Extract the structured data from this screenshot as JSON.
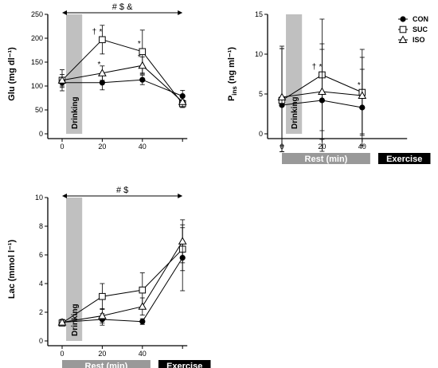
{
  "chart_data": [
    {
      "id": "glu",
      "type": "line",
      "ylabel": "Glu (mg dl⁻¹)",
      "ylim": [
        0,
        250
      ],
      "yticks": [
        0,
        50,
        100,
        150,
        200,
        250
      ],
      "xticks": [
        0,
        20,
        40
      ],
      "x": [
        0,
        20,
        40,
        60
      ],
      "drinking_label": "Drinking",
      "drinking_range": [
        2,
        10
      ],
      "annotation": {
        "text": "#  $  &",
        "x_range": [
          0,
          60
        ]
      },
      "series": [
        {
          "name": "CON",
          "marker": "circle",
          "values": [
            107,
            107,
            113,
            79
          ],
          "err": [
            10,
            15,
            10,
            12
          ]
        },
        {
          "name": "SUC",
          "marker": "square",
          "values": [
            112,
            197,
            172,
            63
          ],
          "err": [
            22,
            30,
            45,
            8
          ]
        },
        {
          "name": "ISO",
          "marker": "triangle",
          "values": [
            112,
            127,
            143,
            67
          ],
          "err": [
            12,
            15,
            18,
            10
          ]
        }
      ],
      "sig": [
        {
          "text": "†",
          "x": 20,
          "y": 208
        },
        {
          "text": "*",
          "x": 20,
          "y": 208
        },
        {
          "text": "*",
          "x": 20,
          "y": 140
        },
        {
          "text": "*",
          "x": 40,
          "y": 183
        },
        {
          "text": "*",
          "x": 40,
          "y": 155
        }
      ]
    },
    {
      "id": "ins",
      "type": "line",
      "ylabel": "P",
      "ylabel_sub": "ins",
      "ylabel_unit": "(ng ml⁻¹)",
      "ylim": [
        0,
        15
      ],
      "yticks": [
        0,
        5,
        10,
        15
      ],
      "xticks": [
        0,
        20,
        40
      ],
      "x": [
        0,
        20,
        40
      ],
      "drinking_label": "Drinking",
      "drinking_range": [
        2,
        10
      ],
      "rest_label": "Rest  (min)",
      "exercise_label": "Exercise",
      "legend": [
        "CON",
        "SUC",
        "ISO"
      ],
      "series": [
        {
          "name": "CON",
          "marker": "circle",
          "values": [
            3.6,
            4.2,
            3.3
          ],
          "err": [
            7.4,
            6.4,
            4.8
          ]
        },
        {
          "name": "SUC",
          "marker": "square",
          "values": [
            4.2,
            7.4,
            5.2
          ],
          "err": [
            6.5,
            7.0,
            5.4
          ]
        },
        {
          "name": "ISO",
          "marker": "triangle",
          "values": [
            4.6,
            5.3,
            4.8
          ],
          "err": [
            6.1,
            6.0,
            4.8
          ]
        }
      ],
      "sig": [
        {
          "text": "†",
          "x": 20,
          "y": 8.1
        },
        {
          "text": "*",
          "x": 20,
          "y": 8.1
        },
        {
          "text": "*",
          "x": 40,
          "y": 5.8
        }
      ]
    },
    {
      "id": "lac",
      "type": "line",
      "ylabel": "Lac (mmol l⁻¹)",
      "ylim": [
        0,
        10
      ],
      "yticks": [
        0,
        2,
        4,
        6,
        8,
        10
      ],
      "xticks": [
        0,
        20,
        40
      ],
      "x": [
        0,
        20,
        40,
        60
      ],
      "drinking_label": "Drinking",
      "drinking_range": [
        2,
        10
      ],
      "annotation": {
        "text": "#  $",
        "x_range": [
          0,
          60
        ]
      },
      "rest_label": "Rest  (min)",
      "exercise_label": "Exercise",
      "series": [
        {
          "name": "CON",
          "marker": "circle",
          "values": [
            1.3,
            1.5,
            1.35,
            5.8
          ],
          "err": [
            0.2,
            0.4,
            0.2,
            2.3
          ]
        },
        {
          "name": "SUC",
          "marker": "square",
          "values": [
            1.25,
            3.1,
            3.55,
            6.4
          ],
          "err": [
            0.2,
            0.9,
            1.2,
            1.5
          ]
        },
        {
          "name": "ISO",
          "marker": "triangle",
          "values": [
            1.3,
            1.75,
            2.4,
            6.95
          ],
          "err": [
            0.2,
            0.5,
            0.6,
            1.5
          ]
        }
      ],
      "sig": []
    }
  ]
}
